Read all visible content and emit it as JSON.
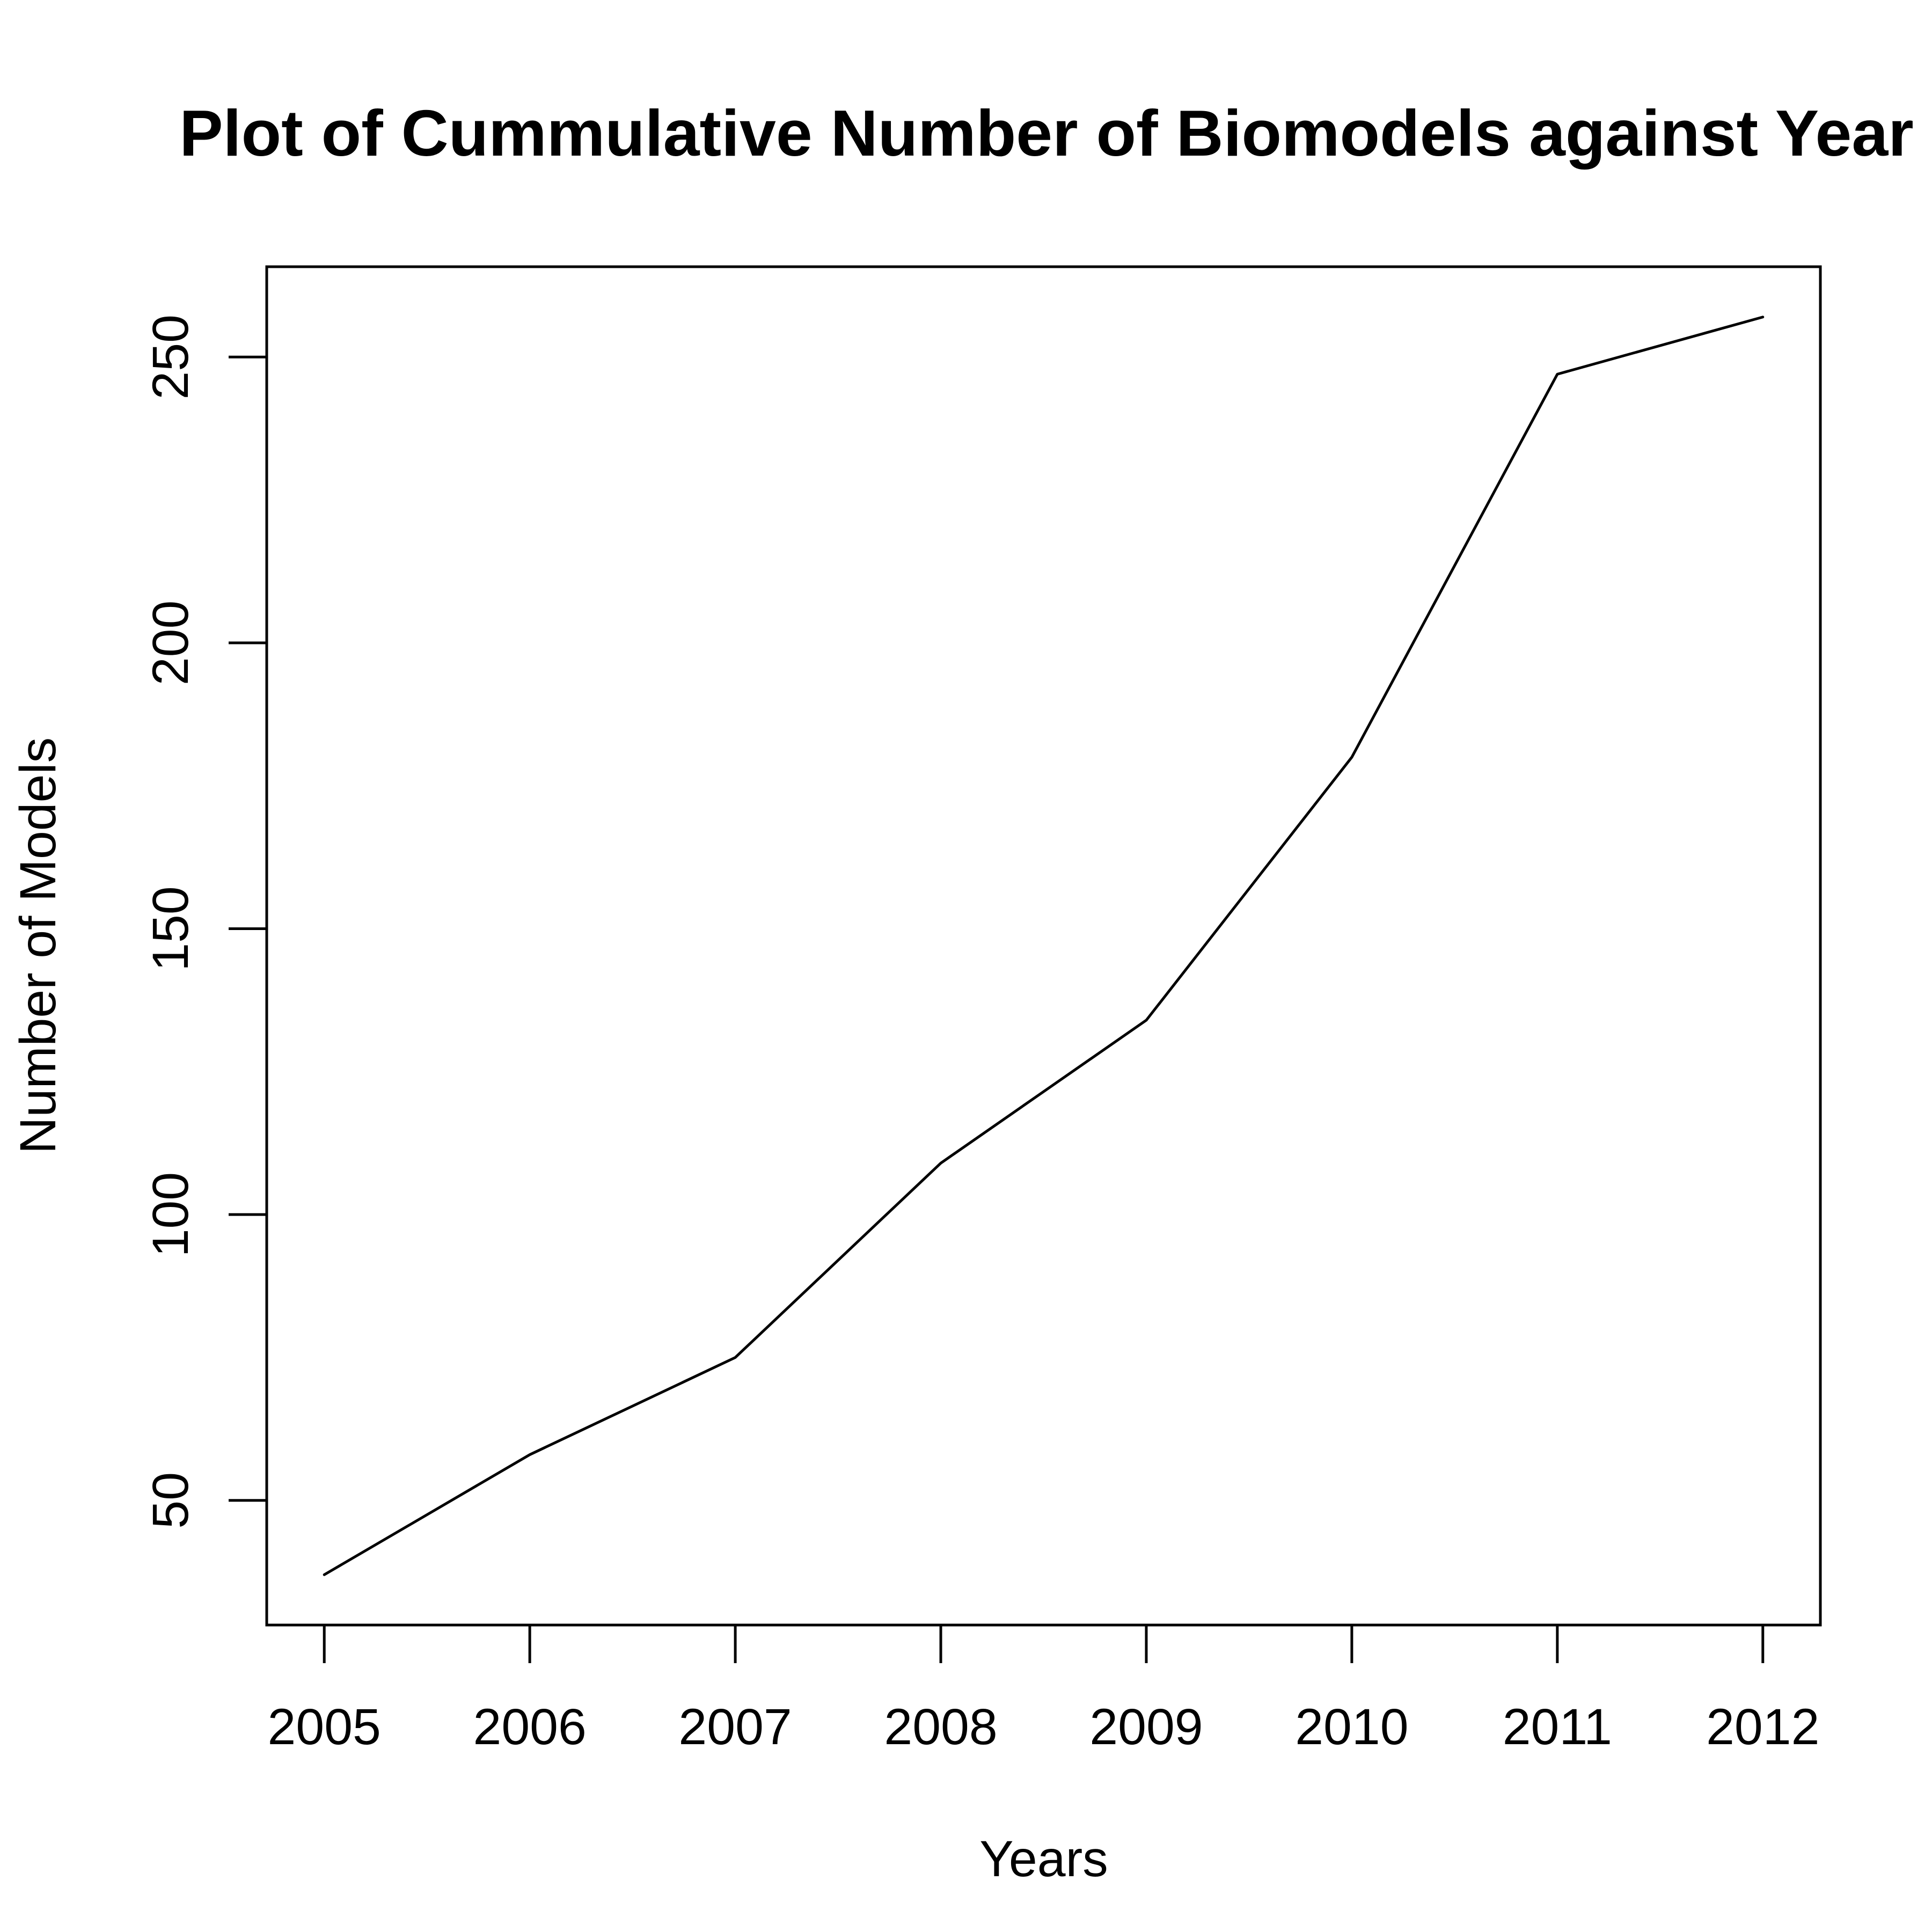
{
  "chart_data": {
    "type": "line",
    "title": "Plot of Cummulative Number of Biomodels against Year",
    "xlabel": "Years",
    "ylabel": "Number of Models",
    "x": [
      2005,
      2006,
      2007,
      2008,
      2009,
      2010,
      2011,
      2012
    ],
    "y": [
      37,
      58,
      75,
      109,
      134,
      180,
      247,
      257
    ],
    "xticks": [
      "2005",
      "2006",
      "2007",
      "2008",
      "2009",
      "2010",
      "2011",
      "2012"
    ],
    "yticks": [
      "50",
      "100",
      "150",
      "200",
      "250"
    ],
    "ytick_values": [
      50,
      100,
      150,
      200,
      250
    ],
    "xlim": [
      2004.72,
      2012.28
    ],
    "ylim": [
      28.2,
      265.8
    ],
    "grid": false,
    "line_color": "#000000"
  }
}
